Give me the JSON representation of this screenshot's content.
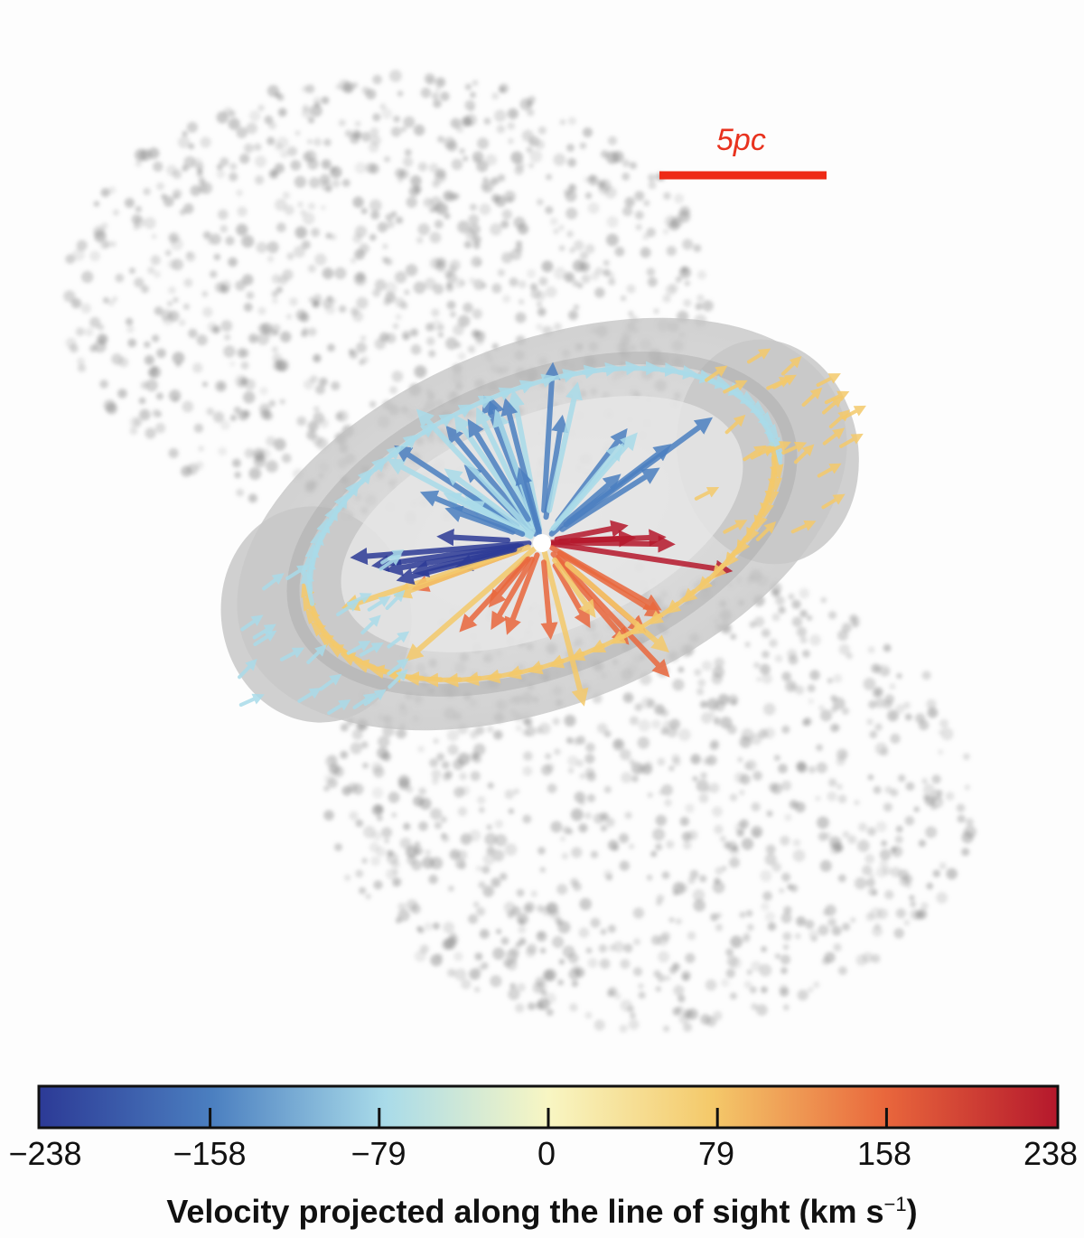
{
  "scale_bar": {
    "label": "5pc",
    "color": "#e8321e"
  },
  "colorbar": {
    "min": -238,
    "max": 238,
    "ticks": [
      "−238",
      "−158",
      "−79",
      "0",
      "79",
      "158",
      "238"
    ],
    "tick_values": [
      -238,
      -158,
      -79,
      0,
      79,
      158,
      238
    ],
    "colors": [
      "#2c3a96",
      "#4b7fc0",
      "#a9dbe9",
      "#f8f6c3",
      "#f4c96a",
      "#e9673c",
      "#b5182c"
    ],
    "title_main": "Velocity projected along the line of sight (km s",
    "title_exp": "−1",
    "title_end": ")"
  }
}
